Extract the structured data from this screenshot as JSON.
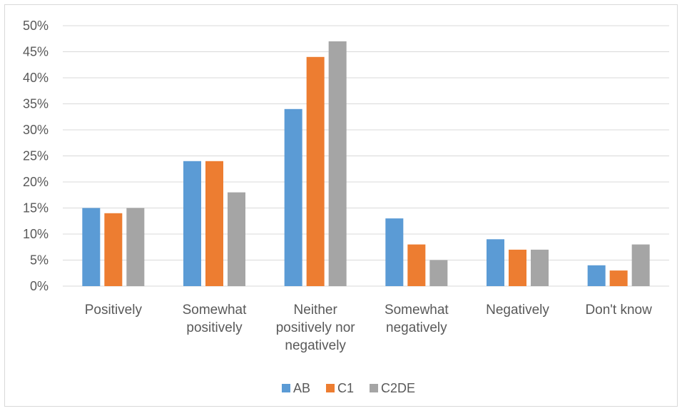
{
  "chart_data": {
    "type": "bar",
    "title": "",
    "xlabel": "",
    "ylabel": "",
    "ylim": [
      0,
      50
    ],
    "yticks": [
      "0%",
      "5%",
      "10%",
      "15%",
      "20%",
      "25%",
      "30%",
      "35%",
      "40%",
      "45%",
      "50%"
    ],
    "categories": [
      [
        "Positively"
      ],
      [
        "Somewhat",
        "positively"
      ],
      [
        "Neither",
        "positively nor",
        "negatively"
      ],
      [
        "Somewhat",
        "negatively"
      ],
      [
        "Negatively"
      ],
      [
        "Don't know"
      ]
    ],
    "series": [
      {
        "name": "AB",
        "color": "#5b9bd5",
        "values": [
          15,
          24,
          34,
          13,
          9,
          4
        ]
      },
      {
        "name": "C1",
        "color": "#ed7d31",
        "values": [
          14,
          24,
          44,
          8,
          7,
          3
        ]
      },
      {
        "name": "C2DE",
        "color": "#a5a5a5",
        "values": [
          15,
          18,
          47,
          5,
          7,
          8
        ]
      }
    ],
    "grid": true,
    "legend_position": "bottom"
  }
}
